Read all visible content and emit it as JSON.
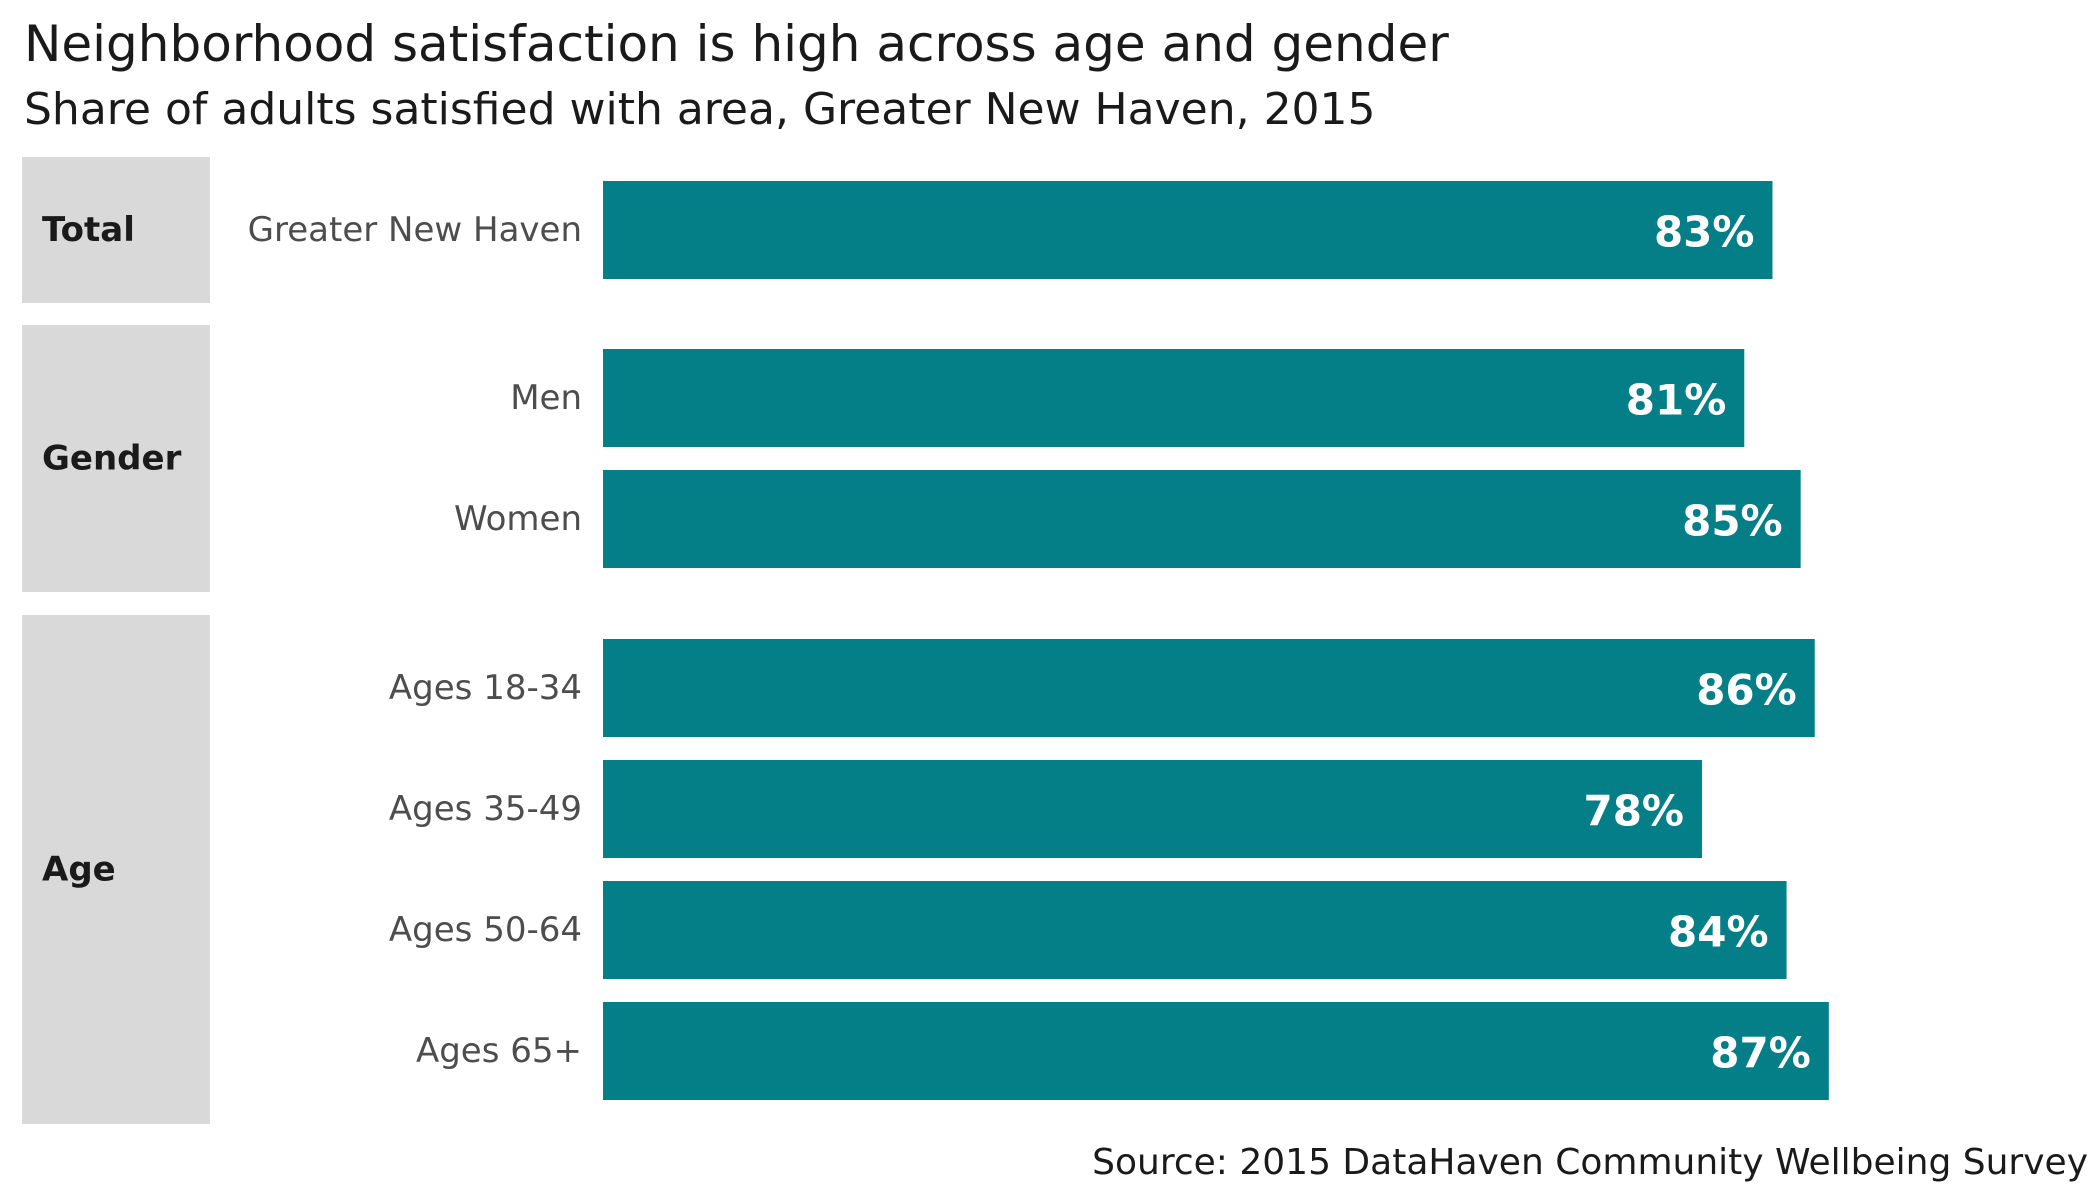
{
  "chart_data": {
    "type": "bar",
    "orientation": "horizontal",
    "title": "Neighborhood satisfaction is high across age and gender",
    "subtitle": "Share of adults satisfied with area, Greater New Haven, 2015",
    "source": "Source: 2015 DataHaven Community Wellbeing Survey",
    "xlim": [
      0,
      1
    ],
    "grid": false,
    "bar_color": "#057f87",
    "facet_strip_color": "#d9d9d9",
    "groups": [
      {
        "name": "Total",
        "categories": [
          "Greater New Haven"
        ],
        "values": [
          0.83
        ],
        "labels": [
          "83%"
        ]
      },
      {
        "name": "Gender",
        "categories": [
          "Men",
          "Women"
        ],
        "values": [
          0.81,
          0.85
        ],
        "labels": [
          "81%",
          "85%"
        ]
      },
      {
        "name": "Age",
        "categories": [
          "Ages 18-34",
          "Ages 35-49",
          "Ages 50-64",
          "Ages 65+"
        ],
        "values": [
          0.86,
          0.78,
          0.84,
          0.87
        ],
        "labels": [
          "86%",
          "78%",
          "84%",
          "87%"
        ]
      }
    ]
  }
}
